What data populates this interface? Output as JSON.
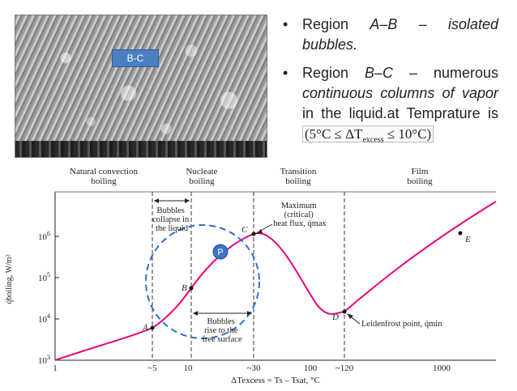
{
  "photo": {
    "label": "B-C"
  },
  "bullets": [
    {
      "prefix": "Region ",
      "region": "A–B",
      "dash": " – ",
      "desc": "isolated bubbles."
    },
    {
      "prefix": "Region ",
      "region": "B–C",
      "dash": " – numerous ",
      "desc": "continuous columns of vapor",
      "tail": " in the liquid.at Temprature is ",
      "formula": "(5°C ≤ ΔT",
      "formula_sub": "excess",
      "formula_end": " ≤ 10°C)"
    }
  ],
  "regions": [
    "Natural convection boiling",
    "Nucleate boiling",
    "Transition boiling",
    "Film boiling"
  ],
  "y_ticks": [
    {
      "base": "10",
      "exp": "3"
    },
    {
      "base": "10",
      "exp": "4"
    },
    {
      "base": "10",
      "exp": "5"
    },
    {
      "base": "10",
      "exp": "6"
    }
  ],
  "x_ticks": [
    "1",
    "~5",
    "10",
    "~30",
    "100",
    "~120",
    "1000"
  ],
  "y_label": "q̇boiling, W/m²",
  "x_label": "ΔTexcess = Ts – Tsat, °C",
  "points": [
    "A",
    "B",
    "C",
    "D",
    "E"
  ],
  "annotations": {
    "bubbles_collapse": [
      "Bubbles",
      "collapse in",
      "the liquid"
    ],
    "bubbles_rise": [
      "Bubbles",
      "rise to the",
      "free surface"
    ],
    "maximum": [
      "Maximum",
      "(critical)",
      "heat flux, q̇max"
    ],
    "leidenfrost": "Leidenfrost point, q̇min",
    "p_marker": "P"
  },
  "colors": {
    "curve": "#e6007e",
    "circle": "#2e6fd1",
    "badge": "#3d72c6"
  }
}
